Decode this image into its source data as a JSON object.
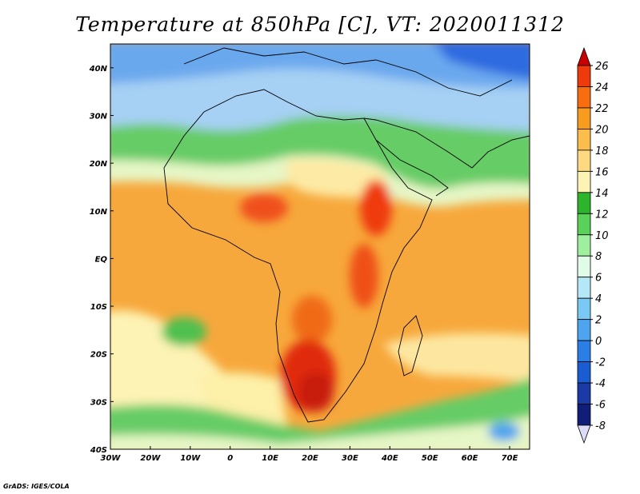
{
  "title": "Temperature at 850hPa [C], VT: 2020011312",
  "credit": "GrADS: IGES/COLA",
  "map": {
    "lon_range": [
      -30,
      75
    ],
    "lat_range": [
      -40,
      45
    ],
    "x_ticks": [
      "30W",
      "20W",
      "10W",
      "0",
      "10E",
      "20E",
      "30E",
      "40E",
      "50E",
      "60E",
      "70E"
    ],
    "y_ticks": [
      "40N",
      "30N",
      "20N",
      "10N",
      "EQ",
      "10S",
      "20S",
      "30S",
      "40S"
    ]
  },
  "colorbar": {
    "levels": [
      "26",
      "24",
      "22",
      "20",
      "18",
      "16",
      "14",
      "12",
      "10",
      "8",
      "6",
      "4",
      "2",
      "0",
      "-2",
      "-4",
      "-6",
      "-8"
    ],
    "colors": [
      "#c80000",
      "#ef3a0c",
      "#f76d10",
      "#f89c20",
      "#fbbd4c",
      "#fdd982",
      "#fdf3b4",
      "#2db42d",
      "#5ad25a",
      "#9ef09e",
      "#e0fbe8",
      "#b4e8f6",
      "#7ac8f4",
      "#4ea4ee",
      "#2a7ee6",
      "#1a5cd2",
      "#1a3aa6",
      "#101e78",
      "#dcdcf8"
    ]
  }
}
